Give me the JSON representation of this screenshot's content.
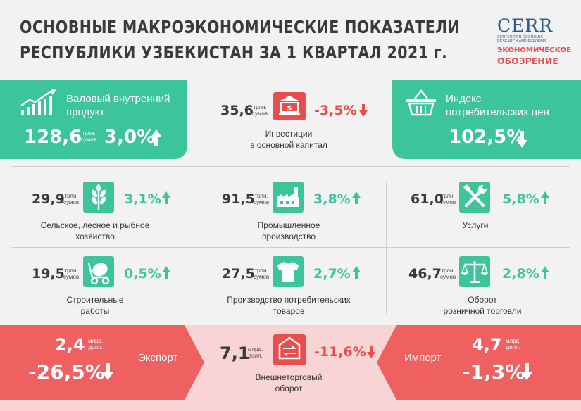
{
  "header": {
    "title_line1": "ОСНОВНЫЕ МАКРОЭКОНОМИЧЕСКИЕ ПОКАЗАТЕЛИ",
    "title_line2": "РЕСПУБЛИКИ УЗБЕКИСТАН ЗА 1 КВАРТАЛ 2021 г.",
    "logo_cerr": "CERR",
    "logo_cerr_sub1": "CENTER FOR ECONOMIC",
    "logo_cerr_sub2": "RESEARCH AND REFORMS",
    "logo_eo1": "ЭКОНОМИЧЕСКОЕ",
    "logo_eo2": "ОБОЗРЕНИЕ"
  },
  "colors": {
    "green": "#3cc59a",
    "red": "#e94e4e",
    "light_red": "#f9d4d4",
    "background": "#f2f2f2"
  },
  "gdp": {
    "label": "Валовый внутренний\nпродукт",
    "value": "128,6",
    "unit": "трлн.\nсумов",
    "change": "3,0%",
    "direction": "up",
    "icon": "growth-chart-icon"
  },
  "investments": {
    "label": "Инвестиции\nв основной капитал",
    "value": "35,6",
    "unit": "трлн.\nсумов",
    "change": "-3,5%",
    "direction": "down",
    "icon": "bank-icon"
  },
  "cpi": {
    "label": "Индекс\nпотребительских цен",
    "value": "102,5%",
    "direction": "down",
    "icon": "basket-icon"
  },
  "agriculture": {
    "label": "Сельское, лесное и рыбное\nхозяйство",
    "value": "29,9",
    "unit": "трлн.\nсумов",
    "change": "3,1%",
    "direction": "up",
    "icon": "wheat-icon"
  },
  "industry": {
    "label": "Промышленное\nпроизводство",
    "value": "91,5",
    "unit": "трлн.\nсумов",
    "change": "3,8%",
    "direction": "up",
    "icon": "factory-icon"
  },
  "services": {
    "label": "Услуги",
    "value": "61,0",
    "unit": "трлн.\nсумов",
    "change": "5,8%",
    "direction": "up",
    "icon": "tools-icon"
  },
  "construction": {
    "label": "Строительные\nработы",
    "value": "19,5",
    "unit": "трлн.\nсумов",
    "change": "0,5%",
    "direction": "up",
    "icon": "concrete-mixer-icon"
  },
  "consumer_goods": {
    "label": "Производство потребительских\nтоваров",
    "value": "27,5",
    "unit": "трлн.\nсумов",
    "change": "2,7%",
    "direction": "up",
    "icon": "tshirt-icon"
  },
  "retail": {
    "label": "Оборот\nрозничной торговли",
    "value": "46,7",
    "unit": "трлн.\nсумов",
    "change": "2,8%",
    "direction": "up",
    "icon": "scales-icon"
  },
  "export": {
    "label": "Экспорт",
    "value": "2,4",
    "unit": "млрд.\nдолл.",
    "change": "-26,5%",
    "direction": "down"
  },
  "trade": {
    "label": "Внешнеторговый\nоборот",
    "value": "7,1",
    "unit": "млрд.\nдолл.",
    "change": "-11,6%",
    "direction": "down",
    "icon": "trade-exchange-icon"
  },
  "import": {
    "label": "Импорт",
    "value": "4,7",
    "unit": "млрд.\nдолл.",
    "change": "-1,3%",
    "direction": "down"
  }
}
